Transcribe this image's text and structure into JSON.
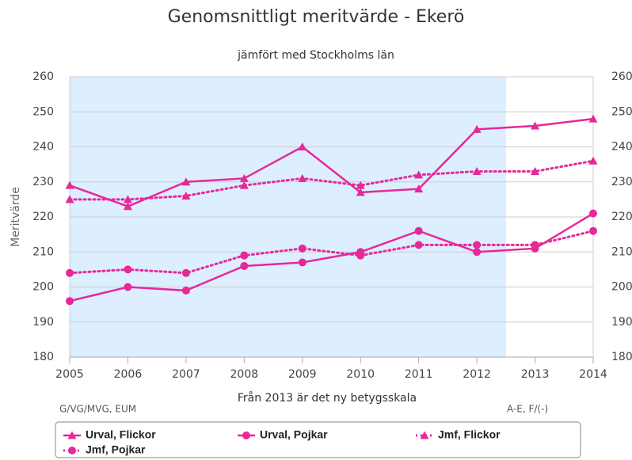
{
  "chart_data": {
    "type": "line",
    "title": "Genomsnittligt meritvärde - Ekerö",
    "subtitle": "jämfört med Stockholms län",
    "y_label": "Meritvärde",
    "x_annotation": "Från 2013 är det ny betygsskala",
    "x": [
      2005,
      2006,
      2007,
      2008,
      2009,
      2010,
      2011,
      2012,
      2013,
      2014
    ],
    "xlim": [
      2005,
      2014
    ],
    "xticks": [
      2005,
      2006,
      2007,
      2008,
      2009,
      2010,
      2011,
      2012,
      2013,
      2014
    ],
    "ylim": [
      180,
      260
    ],
    "yticks": [
      180,
      190,
      200,
      210,
      220,
      230,
      240,
      250,
      260
    ],
    "y2lim": [
      180,
      260
    ],
    "y2ticks": [
      180,
      190,
      200,
      210,
      220,
      230,
      240,
      250,
      260
    ],
    "grid": true,
    "plot_band": {
      "from": 2005,
      "to": 2012.5,
      "color": "#ddeeff",
      "label_left": "G/VG/MVG, EUM",
      "label_right": "A-E, F/(-)"
    },
    "legend": "bottom",
    "series": [
      {
        "name": "Urval, Flickor",
        "color": "#e62899",
        "dash": false,
        "marker": "triangle",
        "values": [
          229,
          223,
          230,
          231,
          240,
          227,
          228,
          245,
          246,
          248
        ]
      },
      {
        "name": "Urval, Pojkar",
        "color": "#e62899",
        "dash": false,
        "marker": "circle",
        "values": [
          196,
          200,
          199,
          206,
          207,
          210,
          216,
          210,
          211,
          221
        ]
      },
      {
        "name": "Jmf, Flickor",
        "color": "#e62899",
        "dash": true,
        "marker": "triangle",
        "values": [
          225,
          225,
          226,
          229,
          231,
          229,
          232,
          233,
          233,
          236
        ]
      },
      {
        "name": "Jmf, Pojkar",
        "color": "#e62899",
        "dash": true,
        "marker": "circle",
        "values": [
          204,
          205,
          204,
          209,
          211,
          209,
          212,
          212,
          212,
          216
        ]
      }
    ]
  }
}
